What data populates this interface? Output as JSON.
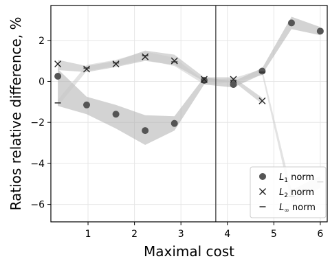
{
  "chart_data": {
    "type": "scatter",
    "xlabel": "Maximal cost",
    "ylabel": "Ratios relative difference, %",
    "xlim": [
      0.2,
      6.15
    ],
    "ylim": [
      -6.85,
      3.7
    ],
    "xticks": [
      1,
      2,
      3,
      4,
      5,
      6
    ],
    "xtick_labels": [
      "1",
      "2",
      "3",
      "4",
      "5",
      "6"
    ],
    "yticks": [
      -6,
      -4,
      -2,
      0,
      2
    ],
    "ytick_labels": [
      "−6",
      "−4",
      "−2",
      "0",
      "2"
    ],
    "grid": true,
    "legend_position": "bottom-right",
    "vline_x": 3.75,
    "series": [
      {
        "name": "L1 norm",
        "legend_base": "L",
        "legend_sub": "1",
        "legend_suffix": " norm",
        "marker": "circle",
        "color": "#555555",
        "x": [
          0.35,
          0.97,
          1.6,
          2.23,
          2.86,
          3.5,
          4.13,
          4.75,
          5.38,
          6.0
        ],
        "y": [
          0.25,
          -1.15,
          -1.6,
          -2.4,
          -2.05,
          0.05,
          -0.15,
          0.5,
          2.85,
          2.45
        ],
        "band_lower": [
          -1.2,
          -1.6,
          -2.3,
          -3.1,
          -2.4,
          -0.15,
          -0.3,
          0.35,
          2.55,
          2.25
        ],
        "band_upper": [
          0.6,
          -0.75,
          -1.15,
          -1.65,
          -1.7,
          0.2,
          0.0,
          0.65,
          3.15,
          2.65
        ],
        "band_color": "#a8a8a8",
        "band_opacity": 0.5
      },
      {
        "name": "L2 norm",
        "legend_base": "L",
        "legend_sub": "2",
        "legend_suffix": " norm",
        "marker": "x",
        "color": "#222222",
        "x": [
          0.35,
          0.97,
          1.6,
          2.23,
          2.86,
          3.5,
          4.13,
          4.75
        ],
        "y": [
          0.85,
          0.6,
          0.85,
          1.2,
          1.0,
          0.1,
          0.1,
          -0.95
        ],
        "band_lower": [
          0.55,
          0.45,
          0.7,
          1.0,
          0.8,
          0.0,
          0.0,
          -1.1
        ],
        "band_upper": [
          1.05,
          0.75,
          1.0,
          1.5,
          1.3,
          0.2,
          0.2,
          -0.8
        ],
        "band_color": "#b8b8b8",
        "band_opacity": 0.55
      },
      {
        "name": "L∞ norm",
        "legend_base": "L",
        "legend_sub": "∞",
        "legend_suffix": " norm",
        "marker": "dash",
        "color": "#333333",
        "x": [
          0.35,
          0.97,
          1.6,
          2.23,
          2.86,
          3.5,
          4.13,
          4.75,
          5.38,
          6.0
        ],
        "y": [
          -1.05,
          0.65,
          0.9,
          1.25,
          0.95,
          -0.05,
          0.05,
          0.45,
          -5.6,
          -4.9
        ],
        "band_lower": [
          -1.2,
          0.5,
          0.75,
          1.05,
          0.75,
          -0.15,
          -0.05,
          0.3,
          -5.9,
          -5.2
        ],
        "band_upper": [
          -0.9,
          0.8,
          1.05,
          1.45,
          1.15,
          0.05,
          0.15,
          0.6,
          -5.3,
          -4.6
        ],
        "band_color": "#c8c8c8",
        "band_opacity": 0.5
      }
    ]
  }
}
